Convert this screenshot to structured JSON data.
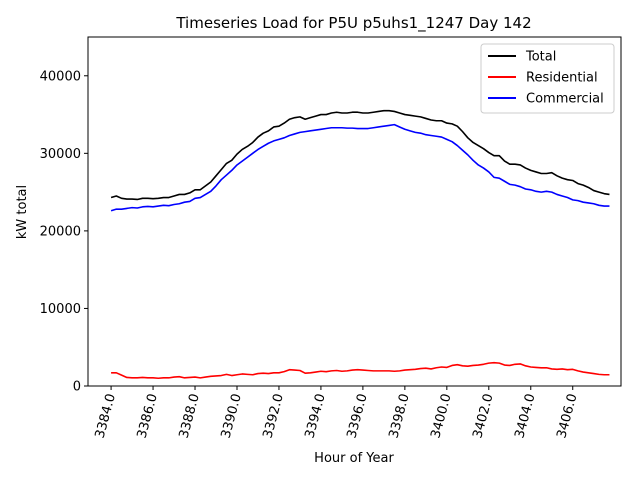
{
  "chart_data": {
    "type": "line",
    "title": "Timeseries Load for P5U p5uhs1_1247  Day 142",
    "xlabel": "Hour of Year",
    "ylabel": "kW total",
    "xlim": [
      3382.9,
      3408.3
    ],
    "ylim": [
      0,
      45000
    ],
    "xticks": [
      3384,
      3386,
      3388,
      3390,
      3392,
      3394,
      3396,
      3398,
      3400,
      3402,
      3404,
      3406
    ],
    "xtick_labels": [
      "3384.0",
      "3386.0",
      "3388.0",
      "3390.0",
      "3392.0",
      "3394.0",
      "3396.0",
      "3398.0",
      "3400.0",
      "3402.0",
      "3404.0",
      "3406.0"
    ],
    "yticks": [
      0,
      10000,
      20000,
      30000,
      40000
    ],
    "ytick_labels": [
      "0",
      "10000",
      "20000",
      "30000",
      "40000"
    ],
    "grid": false,
    "legend_position": "top-right",
    "x": [
      3384.0,
      3384.25,
      3384.5,
      3384.75,
      3385.0,
      3385.25,
      3385.5,
      3385.75,
      3386.0,
      3386.25,
      3386.5,
      3386.75,
      3387.0,
      3387.25,
      3387.5,
      3387.75,
      3388.0,
      3388.25,
      3388.5,
      3388.75,
      3389.0,
      3389.25,
      3389.5,
      3389.75,
      3390.0,
      3390.25,
      3390.5,
      3390.75,
      3391.0,
      3391.25,
      3391.5,
      3391.75,
      3392.0,
      3392.25,
      3392.5,
      3392.75,
      3393.0,
      3393.25,
      3393.5,
      3393.75,
      3394.0,
      3394.25,
      3394.5,
      3394.75,
      3395.0,
      3395.25,
      3395.5,
      3395.75,
      3396.0,
      3396.25,
      3396.5,
      3396.75,
      3397.0,
      3397.25,
      3397.5,
      3397.75,
      3398.0,
      3398.25,
      3398.5,
      3398.75,
      3399.0,
      3399.25,
      3399.5,
      3399.75,
      3400.0,
      3400.25,
      3400.5,
      3400.75,
      3401.0,
      3401.25,
      3401.5,
      3401.75,
      3402.0,
      3402.25,
      3402.5,
      3402.75,
      3403.0,
      3403.25,
      3403.5,
      3403.75,
      3404.0,
      3404.25,
      3404.5,
      3404.75,
      3405.0,
      3405.25,
      3405.5,
      3405.75,
      3406.0,
      3406.25,
      3406.5,
      3406.75,
      3407.0,
      3407.25,
      3407.5,
      3407.75
    ],
    "series": [
      {
        "name": "Total",
        "color": "#000000",
        "values": [
          24300,
          24500,
          24200,
          24100,
          24100,
          24050,
          24200,
          24200,
          24150,
          24200,
          24300,
          24300,
          24500,
          24700,
          24700,
          24900,
          25300,
          25300,
          25800,
          26300,
          27100,
          27900,
          28700,
          29100,
          29900,
          30500,
          30900,
          31400,
          32100,
          32600,
          32900,
          33400,
          33500,
          33900,
          34400,
          34600,
          34700,
          34400,
          34600,
          34800,
          35000,
          35000,
          35200,
          35300,
          35200,
          35200,
          35300,
          35300,
          35200,
          35200,
          35300,
          35400,
          35500,
          35500,
          35400,
          35200,
          35000,
          34900,
          34800,
          34700,
          34500,
          34300,
          34200,
          34200,
          33900,
          33800,
          33500,
          32800,
          32000,
          31400,
          31000,
          30600,
          30100,
          29700,
          29700,
          29000,
          28600,
          28600,
          28500,
          28100,
          27800,
          27600,
          27400,
          27400,
          27500,
          27100,
          26800,
          26600,
          26500,
          26100,
          25900,
          25600,
          25200,
          25000,
          24800,
          24700
        ]
      },
      {
        "name": "Residential",
        "color": "#ff0000",
        "values": [
          1700,
          1700,
          1400,
          1100,
          1050,
          1050,
          1100,
          1050,
          1050,
          1000,
          1050,
          1050,
          1150,
          1200,
          1050,
          1100,
          1150,
          1050,
          1150,
          1250,
          1300,
          1350,
          1500,
          1350,
          1450,
          1550,
          1500,
          1450,
          1600,
          1650,
          1600,
          1700,
          1700,
          1850,
          2100,
          2050,
          2000,
          1650,
          1700,
          1800,
          1900,
          1850,
          1950,
          2000,
          1900,
          1950,
          2050,
          2100,
          2050,
          2000,
          1950,
          1950,
          1950,
          1950,
          1900,
          1950,
          2050,
          2100,
          2150,
          2250,
          2300,
          2200,
          2350,
          2450,
          2400,
          2650,
          2750,
          2600,
          2550,
          2650,
          2700,
          2800,
          2950,
          3000,
          2950,
          2700,
          2650,
          2800,
          2850,
          2600,
          2450,
          2400,
          2350,
          2350,
          2200,
          2150,
          2200,
          2100,
          2150,
          1950,
          1800,
          1700,
          1600,
          1500,
          1450,
          1450
        ]
      },
      {
        "name": "Commercial",
        "color": "#0000ff",
        "values": [
          22600,
          22800,
          22800,
          22900,
          23000,
          22950,
          23100,
          23150,
          23100,
          23200,
          23300,
          23250,
          23400,
          23500,
          23700,
          23800,
          24200,
          24300,
          24700,
          25100,
          25800,
          26600,
          27200,
          27800,
          28500,
          29000,
          29500,
          30000,
          30500,
          30900,
          31300,
          31600,
          31800,
          32000,
          32300,
          32500,
          32700,
          32800,
          32900,
          33000,
          33100,
          33200,
          33300,
          33300,
          33300,
          33250,
          33250,
          33200,
          33200,
          33200,
          33300,
          33400,
          33500,
          33600,
          33700,
          33400,
          33100,
          32900,
          32700,
          32600,
          32400,
          32300,
          32200,
          32100,
          31800,
          31500,
          31000,
          30400,
          29800,
          29100,
          28500,
          28100,
          27600,
          26900,
          26800,
          26400,
          26000,
          25900,
          25700,
          25400,
          25300,
          25100,
          25000,
          25100,
          25000,
          24700,
          24500,
          24300,
          24000,
          23900,
          23700,
          23600,
          23500,
          23300,
          23200,
          23200
        ]
      }
    ]
  }
}
